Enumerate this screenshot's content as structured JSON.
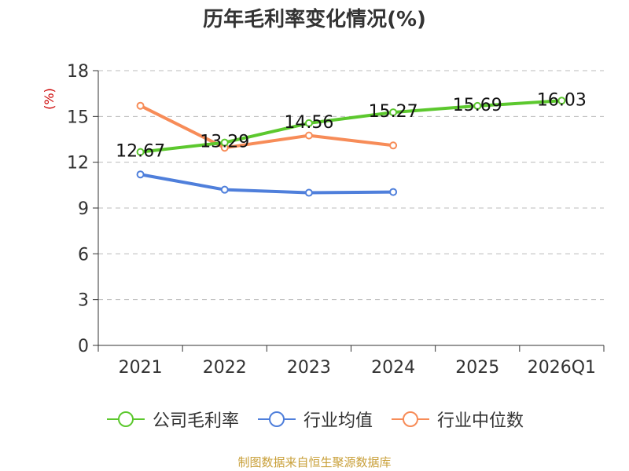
{
  "chart_data": {
    "type": "line",
    "title": "历年毛利率变化情况(%)",
    "ylabel": "(%)",
    "xlabel": "",
    "categories": [
      "2021",
      "2022",
      "2023",
      "2024",
      "2025",
      "2026Q1"
    ],
    "ylim": [
      0,
      18
    ],
    "yticks": [
      "0",
      "3",
      "6",
      "9",
      "12",
      "15",
      "18"
    ],
    "grid": true,
    "legend_position": "bottom",
    "series": [
      {
        "name": "公司毛利率",
        "color": "#5cc82e",
        "values": [
          12.67,
          13.29,
          14.56,
          15.27,
          15.69,
          16.03
        ],
        "labels": [
          "12.67",
          "13.29",
          "14.56",
          "15.27",
          "15.69",
          "16.03"
        ]
      },
      {
        "name": "行业均值",
        "color": "#4f7fdb",
        "values": [
          11.2,
          10.2,
          10.0,
          10.05,
          null,
          null
        ],
        "labels": []
      },
      {
        "name": "行业中位数",
        "color": "#f78c58",
        "values": [
          15.7,
          12.95,
          13.75,
          13.1,
          null,
          null
        ],
        "labels": []
      }
    ]
  },
  "footer": {
    "source": "制图数据来自恒生聚源数据库"
  },
  "colors": {
    "axis": "#333333",
    "grid": "#bbbbbb",
    "ylabel": "#cc0000"
  }
}
